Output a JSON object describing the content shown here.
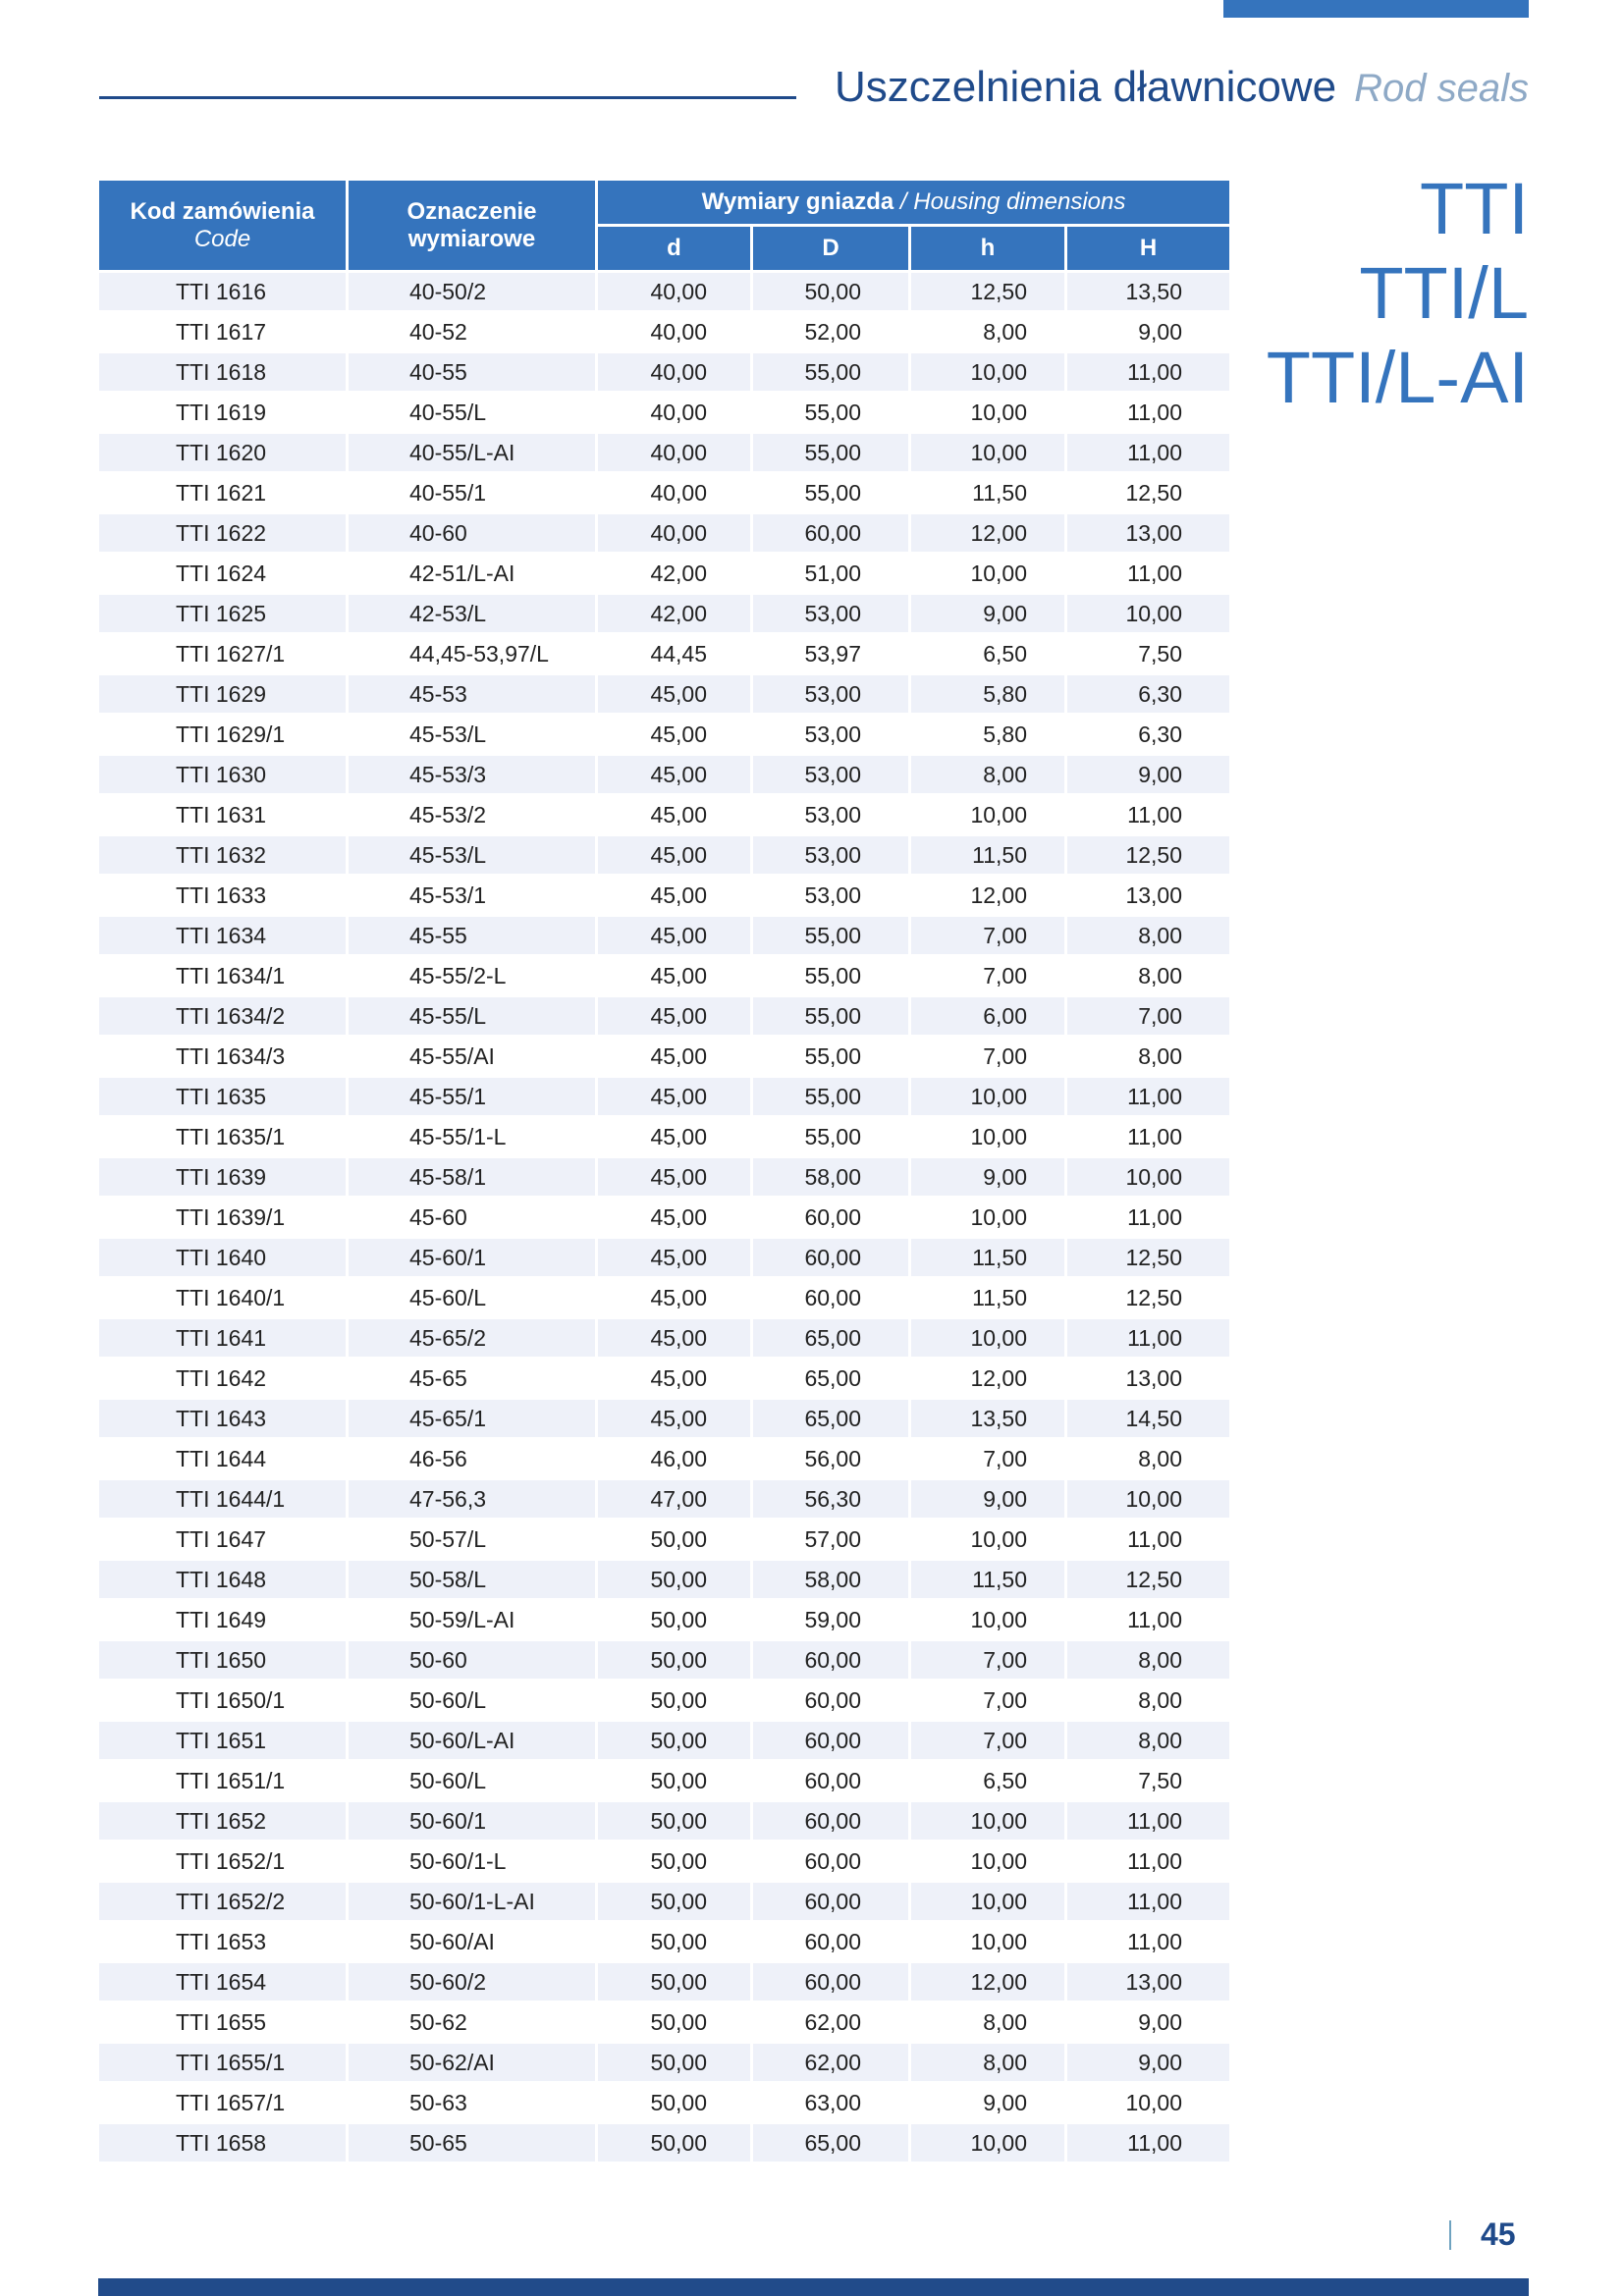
{
  "header": {
    "title_pl": "Uszczelnienia dławnicowe",
    "title_en": "Rod seals"
  },
  "series_labels": [
    "TTI",
    "TTI/L",
    "TTI/L-AI"
  ],
  "table": {
    "col_code": "Kod zamówienia",
    "col_code_en": "Code",
    "col_designation_1": "Oznaczenie",
    "col_designation_2": "wymiarowe",
    "group_pl": "Wymiary gniazda",
    "group_sep": " / ",
    "group_en": "Housing dimensions",
    "dims": [
      "d",
      "D",
      "h",
      "H"
    ],
    "rows": [
      [
        "TTI 1616",
        "40-50/2",
        "40,00",
        "50,00",
        "12,50",
        "13,50"
      ],
      [
        "TTI 1617",
        "40-52",
        "40,00",
        "52,00",
        "8,00",
        "9,00"
      ],
      [
        "TTI 1618",
        "40-55",
        "40,00",
        "55,00",
        "10,00",
        "11,00"
      ],
      [
        "TTI 1619",
        "40-55/L",
        "40,00",
        "55,00",
        "10,00",
        "11,00"
      ],
      [
        "TTI 1620",
        "40-55/L-AI",
        "40,00",
        "55,00",
        "10,00",
        "11,00"
      ],
      [
        "TTI 1621",
        "40-55/1",
        "40,00",
        "55,00",
        "11,50",
        "12,50"
      ],
      [
        "TTI 1622",
        "40-60",
        "40,00",
        "60,00",
        "12,00",
        "13,00"
      ],
      [
        "TTI 1624",
        "42-51/L-AI",
        "42,00",
        "51,00",
        "10,00",
        "11,00"
      ],
      [
        "TTI 1625",
        "42-53/L",
        "42,00",
        "53,00",
        "9,00",
        "10,00"
      ],
      [
        "TTI 1627/1",
        "44,45-53,97/L",
        "44,45",
        "53,97",
        "6,50",
        "7,50"
      ],
      [
        "TTI 1629",
        "45-53",
        "45,00",
        "53,00",
        "5,80",
        "6,30"
      ],
      [
        "TTI 1629/1",
        "45-53/L",
        "45,00",
        "53,00",
        "5,80",
        "6,30"
      ],
      [
        "TTI 1630",
        "45-53/3",
        "45,00",
        "53,00",
        "8,00",
        "9,00"
      ],
      [
        "TTI 1631",
        "45-53/2",
        "45,00",
        "53,00",
        "10,00",
        "11,00"
      ],
      [
        "TTI 1632",
        "45-53/L",
        "45,00",
        "53,00",
        "11,50",
        "12,50"
      ],
      [
        "TTI 1633",
        "45-53/1",
        "45,00",
        "53,00",
        "12,00",
        "13,00"
      ],
      [
        "TTI 1634",
        "45-55",
        "45,00",
        "55,00",
        "7,00",
        "8,00"
      ],
      [
        "TTI 1634/1",
        "45-55/2-L",
        "45,00",
        "55,00",
        "7,00",
        "8,00"
      ],
      [
        "TTI 1634/2",
        "45-55/L",
        "45,00",
        "55,00",
        "6,00",
        "7,00"
      ],
      [
        "TTI 1634/3",
        "45-55/AI",
        "45,00",
        "55,00",
        "7,00",
        "8,00"
      ],
      [
        "TTI 1635",
        "45-55/1",
        "45,00",
        "55,00",
        "10,00",
        "11,00"
      ],
      [
        "TTI 1635/1",
        "45-55/1-L",
        "45,00",
        "55,00",
        "10,00",
        "11,00"
      ],
      [
        "TTI 1639",
        "45-58/1",
        "45,00",
        "58,00",
        "9,00",
        "10,00"
      ],
      [
        "TTI 1639/1",
        "45-60",
        "45,00",
        "60,00",
        "10,00",
        "11,00"
      ],
      [
        "TTI 1640",
        "45-60/1",
        "45,00",
        "60,00",
        "11,50",
        "12,50"
      ],
      [
        "TTI 1640/1",
        "45-60/L",
        "45,00",
        "60,00",
        "11,50",
        "12,50"
      ],
      [
        "TTI 1641",
        "45-65/2",
        "45,00",
        "65,00",
        "10,00",
        "11,00"
      ],
      [
        "TTI 1642",
        "45-65",
        "45,00",
        "65,00",
        "12,00",
        "13,00"
      ],
      [
        "TTI 1643",
        "45-65/1",
        "45,00",
        "65,00",
        "13,50",
        "14,50"
      ],
      [
        "TTI 1644",
        "46-56",
        "46,00",
        "56,00",
        "7,00",
        "8,00"
      ],
      [
        "TTI 1644/1",
        "47-56,3",
        "47,00",
        "56,30",
        "9,00",
        "10,00"
      ],
      [
        "TTI 1647",
        "50-57/L",
        "50,00",
        "57,00",
        "10,00",
        "11,00"
      ],
      [
        "TTI 1648",
        "50-58/L",
        "50,00",
        "58,00",
        "11,50",
        "12,50"
      ],
      [
        "TTI 1649",
        "50-59/L-AI",
        "50,00",
        "59,00",
        "10,00",
        "11,00"
      ],
      [
        "TTI 1650",
        "50-60",
        "50,00",
        "60,00",
        "7,00",
        "8,00"
      ],
      [
        "TTI 1650/1",
        "50-60/L",
        "50,00",
        "60,00",
        "7,00",
        "8,00"
      ],
      [
        "TTI 1651",
        "50-60/L-AI",
        "50,00",
        "60,00",
        "7,00",
        "8,00"
      ],
      [
        "TTI 1651/1",
        "50-60/L",
        "50,00",
        "60,00",
        "6,50",
        "7,50"
      ],
      [
        "TTI 1652",
        "50-60/1",
        "50,00",
        "60,00",
        "10,00",
        "11,00"
      ],
      [
        "TTI 1652/1",
        "50-60/1-L",
        "50,00",
        "60,00",
        "10,00",
        "11,00"
      ],
      [
        "TTI 1652/2",
        "50-60/1-L-AI",
        "50,00",
        "60,00",
        "10,00",
        "11,00"
      ],
      [
        "TTI 1653",
        "50-60/AI",
        "50,00",
        "60,00",
        "10,00",
        "11,00"
      ],
      [
        "TTI 1654",
        "50-60/2",
        "50,00",
        "60,00",
        "12,00",
        "13,00"
      ],
      [
        "TTI 1655",
        "50-62",
        "50,00",
        "62,00",
        "8,00",
        "9,00"
      ],
      [
        "TTI 1655/1",
        "50-62/AI",
        "50,00",
        "62,00",
        "8,00",
        "9,00"
      ],
      [
        "TTI 1657/1",
        "50-63",
        "50,00",
        "63,00",
        "9,00",
        "10,00"
      ],
      [
        "TTI 1658",
        "50-65",
        "50,00",
        "65,00",
        "10,00",
        "11,00"
      ]
    ]
  },
  "footer": {
    "page_number": "45"
  },
  "colors": {
    "accent": "#3574bd",
    "dark_blue": "#1f4a8a",
    "row_shade": "#eef1f9",
    "subtitle_grey": "#8ea9c6"
  }
}
